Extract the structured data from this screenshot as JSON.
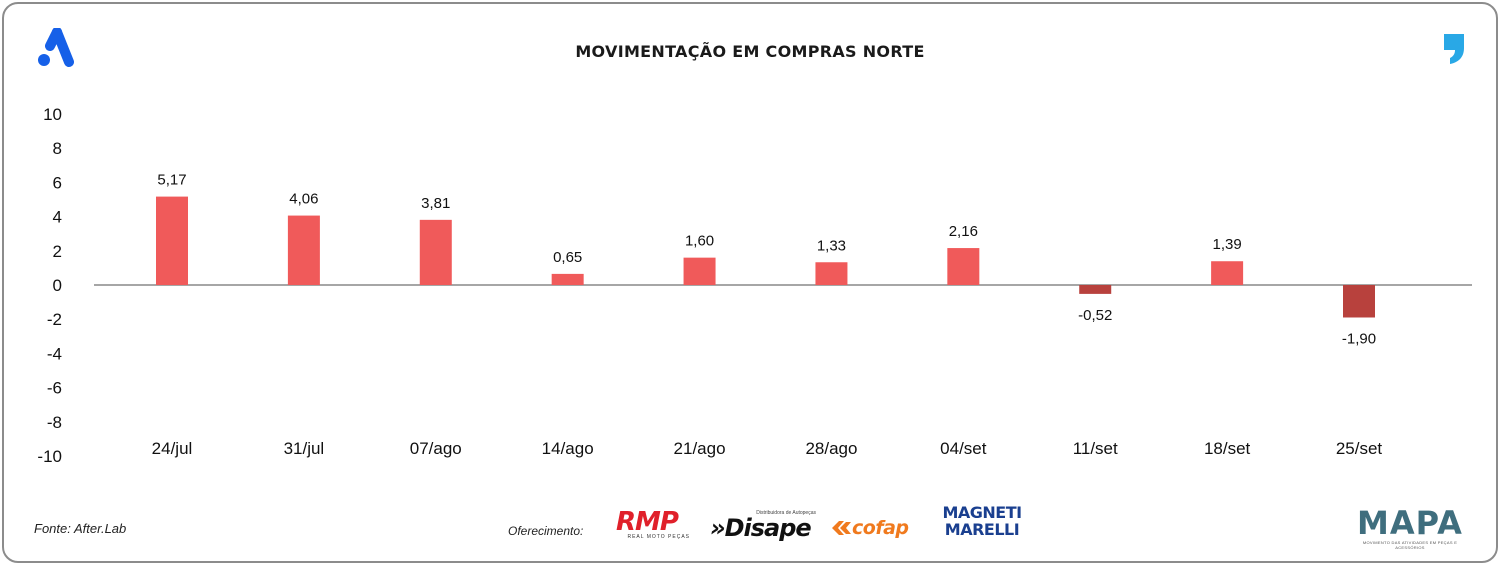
{
  "header": {
    "title": "MOVIMENTAÇÃO EM COMPRAS NORTE",
    "left_logo_icon": "after-lab-a-icon",
    "right_logo_icon": "comma-quote-icon"
  },
  "chart_data": {
    "type": "bar",
    "title": "MOVIMENTAÇÃO EM COMPRAS NORTE",
    "categories": [
      "24/jul",
      "31/jul",
      "07/ago",
      "14/ago",
      "21/ago",
      "28/ago",
      "04/set",
      "11/set",
      "18/set",
      "25/set"
    ],
    "values": [
      5.17,
      4.06,
      3.81,
      0.65,
      1.6,
      1.33,
      2.16,
      -0.52,
      1.39,
      -1.9
    ],
    "data_labels": [
      "5,17",
      "4,06",
      "3,81",
      "0,65",
      "1,60",
      "1,33",
      "2,16",
      "-0,52",
      "1,39",
      "-1,90"
    ],
    "y_ticks": [
      10,
      8,
      6,
      4,
      2,
      0,
      -2,
      -4,
      -6,
      -8,
      -10
    ],
    "ylim": [
      -10,
      10
    ],
    "xlabel": "",
    "ylabel": "",
    "grid": false,
    "legend": "none",
    "colors": {
      "positive": "#f05a5a",
      "negative": "#b8413d",
      "zero_line": "#888888"
    }
  },
  "footer": {
    "source": "Fonte: After.Lab",
    "sponsor_label": "Oferecimento:",
    "sponsors": {
      "rmp": {
        "name": "RMP",
        "tagline": "REAL MOTO PEÇAS"
      },
      "disape": {
        "name": "»Disape",
        "tagline": "Distribuidora de Autopeças"
      },
      "cofap": {
        "name": "cofap"
      },
      "magneti": {
        "line1": "MAGNETI",
        "line2": "MARELLI"
      },
      "mapa": {
        "name": "MAPA",
        "tagline": "MOVIMENTO DAS ATIVIDADES EM PEÇAS E ACESSÓRIOS"
      }
    }
  }
}
